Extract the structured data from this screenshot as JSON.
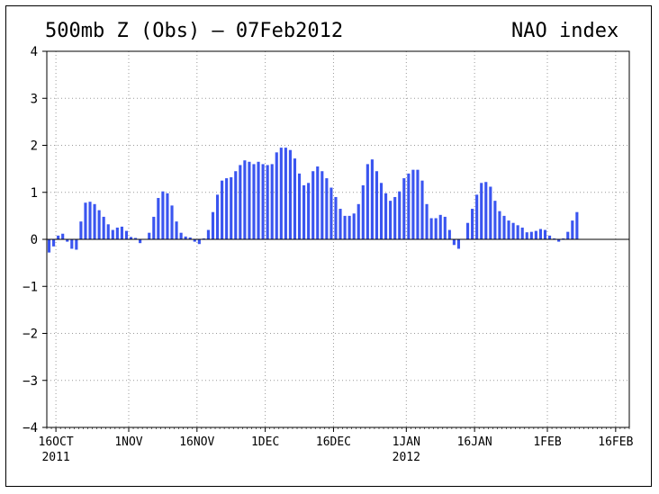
{
  "title_left": "500mb Z (Obs) – 07Feb2012",
  "title_right": "NAO index",
  "chart_data": {
    "type": "bar",
    "title": "500mb Z (Obs) – 07Feb2012",
    "subtitle": "NAO index",
    "x_ticks": [
      {
        "label": "16OCT",
        "sub": "2011",
        "date": "2011-10-16"
      },
      {
        "label": "1NOV",
        "sub": "",
        "date": "2011-11-01"
      },
      {
        "label": "16NOV",
        "sub": "",
        "date": "2011-11-16"
      },
      {
        "label": "1DEC",
        "sub": "",
        "date": "2011-12-01"
      },
      {
        "label": "16DEC",
        "sub": "",
        "date": "2011-12-16"
      },
      {
        "label": "1JAN",
        "sub": "2012",
        "date": "2012-01-01"
      },
      {
        "label": "16JAN",
        "sub": "",
        "date": "2012-01-16"
      },
      {
        "label": "1FEB",
        "sub": "",
        "date": "2012-02-01"
      },
      {
        "label": "16FEB",
        "sub": "",
        "date": "2012-02-16"
      }
    ],
    "y_ticks": [
      -4,
      -3,
      -2,
      -1,
      0,
      1,
      2,
      3,
      4
    ],
    "ylim": [
      -4,
      4
    ],
    "xlim": [
      "2011-10-14",
      "2012-02-19"
    ],
    "grid": true,
    "bar_color": "#3a55f0",
    "x": [
      "2011-10-14",
      "2011-10-15",
      "2011-10-16",
      "2011-10-17",
      "2011-10-18",
      "2011-10-19",
      "2011-10-20",
      "2011-10-21",
      "2011-10-22",
      "2011-10-23",
      "2011-10-24",
      "2011-10-25",
      "2011-10-26",
      "2011-10-27",
      "2011-10-28",
      "2011-10-29",
      "2011-10-30",
      "2011-10-31",
      "2011-11-01",
      "2011-11-02",
      "2011-11-03",
      "2011-11-04",
      "2011-11-05",
      "2011-11-06",
      "2011-11-07",
      "2011-11-08",
      "2011-11-09",
      "2011-11-10",
      "2011-11-11",
      "2011-11-12",
      "2011-11-13",
      "2011-11-14",
      "2011-11-15",
      "2011-11-16",
      "2011-11-17",
      "2011-11-18",
      "2011-11-19",
      "2011-11-20",
      "2011-11-21",
      "2011-11-22",
      "2011-11-23",
      "2011-11-24",
      "2011-11-25",
      "2011-11-26",
      "2011-11-27",
      "2011-11-28",
      "2011-11-29",
      "2011-11-30",
      "2011-12-01",
      "2011-12-02",
      "2011-12-03",
      "2011-12-04",
      "2011-12-05",
      "2011-12-06",
      "2011-12-07",
      "2011-12-08",
      "2011-12-09",
      "2011-12-10",
      "2011-12-11",
      "2011-12-12",
      "2011-12-13",
      "2011-12-14",
      "2011-12-15",
      "2011-12-16",
      "2011-12-17",
      "2011-12-18",
      "2011-12-19",
      "2011-12-20",
      "2011-12-21",
      "2011-12-22",
      "2011-12-23",
      "2011-12-24",
      "2011-12-25",
      "2011-12-26",
      "2011-12-27",
      "2011-12-28",
      "2011-12-29",
      "2011-12-30",
      "2011-12-31",
      "2012-01-01",
      "2012-01-02",
      "2012-01-03",
      "2012-01-04",
      "2012-01-05",
      "2012-01-06",
      "2012-01-07",
      "2012-01-08",
      "2012-01-09",
      "2012-01-10",
      "2012-01-11",
      "2012-01-12",
      "2012-01-13",
      "2012-01-14",
      "2012-01-15",
      "2012-01-16",
      "2012-01-17",
      "2012-01-18",
      "2012-01-19",
      "2012-01-20",
      "2012-01-21",
      "2012-01-22",
      "2012-01-23",
      "2012-01-24",
      "2012-01-25",
      "2012-01-26",
      "2012-01-27",
      "2012-01-28",
      "2012-01-29",
      "2012-01-30",
      "2012-01-31",
      "2012-02-01",
      "2012-02-02",
      "2012-02-03",
      "2012-02-04",
      "2012-02-05",
      "2012-02-06",
      "2012-02-07"
    ],
    "values": [
      -0.28,
      -0.15,
      0.08,
      0.12,
      -0.05,
      -0.2,
      -0.22,
      0.38,
      0.78,
      0.8,
      0.75,
      0.62,
      0.48,
      0.32,
      0.2,
      0.25,
      0.27,
      0.18,
      0.05,
      0.03,
      -0.08,
      0.0,
      0.14,
      0.48,
      0.88,
      1.02,
      0.98,
      0.72,
      0.38,
      0.14,
      0.06,
      0.04,
      -0.05,
      -0.1,
      0.02,
      0.2,
      0.58,
      0.95,
      1.25,
      1.3,
      1.32,
      1.45,
      1.58,
      1.68,
      1.65,
      1.6,
      1.65,
      1.6,
      1.58,
      1.6,
      1.85,
      1.95,
      1.95,
      1.9,
      1.72,
      1.4,
      1.15,
      1.2,
      1.45,
      1.55,
      1.45,
      1.3,
      1.1,
      0.9,
      0.65,
      0.5,
      0.5,
      0.55,
      0.75,
      1.15,
      1.6,
      1.7,
      1.45,
      1.2,
      0.98,
      0.82,
      0.9,
      1.02,
      1.3,
      1.4,
      1.48,
      1.48,
      1.25,
      0.75,
      0.45,
      0.45,
      0.52,
      0.48,
      0.2,
      -0.12,
      -0.2,
      0.0,
      0.35,
      0.65,
      0.95,
      1.2,
      1.22,
      1.12,
      0.82,
      0.6,
      0.5,
      0.4,
      0.35,
      0.3,
      0.25,
      0.15,
      0.16,
      0.18,
      0.22,
      0.2,
      0.08,
      0.02,
      -0.05,
      0.02,
      0.16,
      0.4,
      0.58
    ]
  }
}
